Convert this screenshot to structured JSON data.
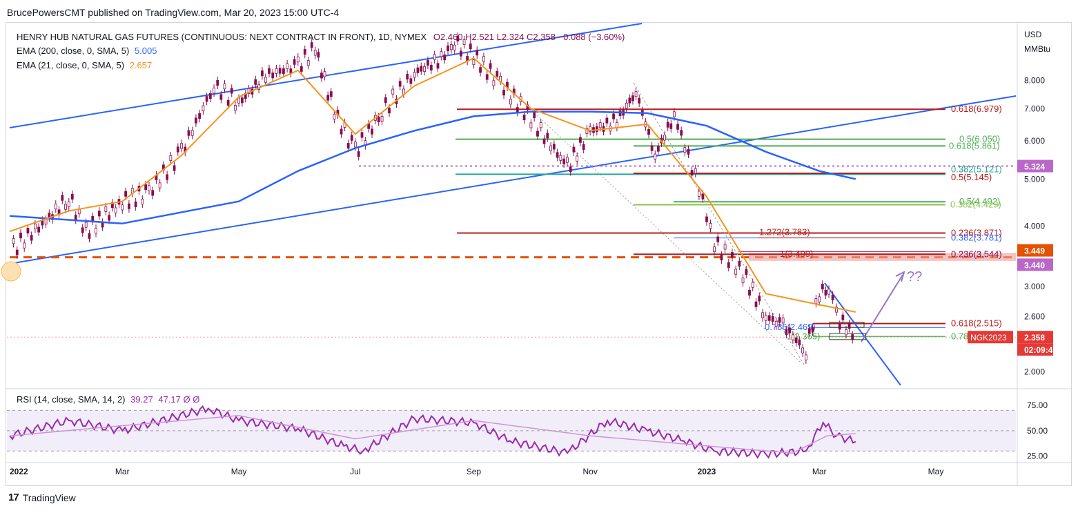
{
  "header": {
    "publisher": "BrucePowersCMT published on TradingView.com, Mar 20, 2023 15:00 UTC-4"
  },
  "legend": {
    "symbol": "HENRY HUB NATURAL GAS FUTURES (CONTINUOUS: NEXT CONTRACT IN FRONT), 1D, NYMEX",
    "ohlc": "O2.460  H2.521  L2.324  C2.358  −0.088 (−3.60%)",
    "ema200_label": "EMA (200, close, 0, SMA, 5)",
    "ema200_value": "5.005",
    "ema21_label": "EMA (21, close, 0, SMA, 5)",
    "ema21_value": "2.657",
    "rsi_label": "RSI (14, close, SMA, 14, 2)",
    "rsi_value1": "39.27",
    "rsi_value2": "47.17",
    "rsi_value3": "Ø",
    "rsi_value4": "Ø"
  },
  "footer": {
    "brand": "TradingView"
  },
  "colors": {
    "candle": "#880e4f",
    "ema200": "#2962ff",
    "ema21": "#f7931a",
    "rsi": "#9c27b0",
    "trendline": "#2962ff",
    "support": "#e65100",
    "fib_red": "#b71c1c",
    "fib_green": "#4caf50",
    "price_tag": "#e53935"
  },
  "chart_data": [
    {
      "type": "candlestick",
      "title": "HENRY HUB NATURAL GAS FUTURES (CONTINUOUS: NEXT CONTRACT IN FRONT), 1D, NYMEX",
      "y_unit": "USD MMBtu",
      "y_scale": "log",
      "ylim": [
        1.85,
        10.5
      ],
      "y_ticks": [
        "8.000",
        "7.000",
        "6.000",
        "5.000",
        "4.000",
        "3.000",
        "2.600",
        "2.000"
      ],
      "x_ticks": [
        "2022",
        "Mar",
        "May",
        "Jul",
        "Sep",
        "Nov",
        "2023",
        "Mar",
        "May"
      ],
      "x_tick_dates": [
        "2022-01-01",
        "2022-03-01",
        "2022-05-01",
        "2022-07-01",
        "2022-09-01",
        "2022-11-01",
        "2023-01-01",
        "2023-03-01",
        "2023-05-01"
      ],
      "series": [
        {
          "name": "EMA (200, close, 0, SMA, 5)",
          "points": [
            [
              "2022-01-01",
              4.2
            ],
            [
              "2022-03-01",
              4.05
            ],
            [
              "2022-05-01",
              4.5
            ],
            [
              "2022-06-01",
              5.2
            ],
            [
              "2022-07-01",
              5.8
            ],
            [
              "2022-08-01",
              6.3
            ],
            [
              "2022-09-01",
              6.75
            ],
            [
              "2022-10-01",
              6.9
            ],
            [
              "2022-11-01",
              6.9
            ],
            [
              "2022-12-01",
              6.85
            ],
            [
              "2023-01-01",
              6.45
            ],
            [
              "2023-02-01",
              5.7
            ],
            [
              "2023-03-01",
              5.2
            ],
            [
              "2023-03-20",
              5.005
            ]
          ]
        },
        {
          "name": "EMA (21, close, 0, SMA, 5)",
          "points": [
            [
              "2022-01-01",
              3.9
            ],
            [
              "2022-02-01",
              4.3
            ],
            [
              "2022-03-01",
              4.5
            ],
            [
              "2022-04-01",
              5.6
            ],
            [
              "2022-05-01",
              7.4
            ],
            [
              "2022-06-01",
              8.4
            ],
            [
              "2022-07-01",
              6.2
            ],
            [
              "2022-08-01",
              7.8
            ],
            [
              "2022-09-01",
              8.9
            ],
            [
              "2022-10-01",
              7.0
            ],
            [
              "2022-11-01",
              6.3
            ],
            [
              "2022-12-01",
              6.5
            ],
            [
              "2023-01-01",
              4.6
            ],
            [
              "2023-02-01",
              2.9
            ],
            [
              "2023-03-01",
              2.75
            ],
            [
              "2023-03-20",
              2.657
            ]
          ]
        },
        {
          "name": "Close",
          "points": [
            [
              "2022-01-03",
              3.6
            ],
            [
              "2022-01-20",
              4.1
            ],
            [
              "2022-02-01",
              4.6
            ],
            [
              "2022-02-10",
              3.9
            ],
            [
              "2022-03-01",
              4.5
            ],
            [
              "2022-03-15",
              4.7
            ],
            [
              "2022-04-01",
              5.7
            ],
            [
              "2022-04-18",
              7.8
            ],
            [
              "2022-05-01",
              7.2
            ],
            [
              "2022-05-15",
              8.2
            ],
            [
              "2022-06-01",
              8.6
            ],
            [
              "2022-06-10",
              9.3
            ],
            [
              "2022-06-20",
              6.9
            ],
            [
              "2022-07-01",
              5.7
            ],
            [
              "2022-07-15",
              6.9
            ],
            [
              "2022-08-01",
              8.3
            ],
            [
              "2022-08-15",
              8.9
            ],
            [
              "2022-08-22",
              9.6
            ],
            [
              "2022-09-01",
              9.0
            ],
            [
              "2022-09-15",
              7.9
            ],
            [
              "2022-10-01",
              6.7
            ],
            [
              "2022-10-20",
              5.3
            ],
            [
              "2022-11-01",
              6.3
            ],
            [
              "2022-11-15",
              6.6
            ],
            [
              "2022-11-25",
              7.6
            ],
            [
              "2022-12-05",
              5.6
            ],
            [
              "2022-12-15",
              6.8
            ],
            [
              "2022-12-28",
              4.8
            ],
            [
              "2023-01-05",
              3.7
            ],
            [
              "2023-01-20",
              3.2
            ],
            [
              "2023-02-01",
              2.6
            ],
            [
              "2023-02-10",
              2.5
            ],
            [
              "2023-02-22",
              2.2
            ],
            [
              "2023-03-01",
              2.9
            ],
            [
              "2023-03-06",
              3.0
            ],
            [
              "2023-03-10",
              2.6
            ],
            [
              "2023-03-20",
              2.358
            ]
          ]
        }
      ],
      "levels": [
        {
          "label": "0.618(6.979)",
          "value": 6.979
        },
        {
          "label": "0.5(6.050)",
          "value": 6.05
        },
        {
          "label": "0.618(5.861)",
          "value": 5.861
        },
        {
          "label": "0.382(5.121)",
          "value": 5.121
        },
        {
          "label": "0.5(5.145)",
          "value": 5.145
        },
        {
          "label": "0.5(4.492)",
          "value": 4.492
        },
        {
          "label": "0.382(4.429)",
          "value": 4.429
        },
        {
          "label": "0.236(3.871)",
          "value": 3.871
        },
        {
          "label": "0.382(3.781)",
          "value": 3.781
        },
        {
          "label": "1.272(3.783)",
          "value": 3.783
        },
        {
          "label": "1(3.499)",
          "value": 3.499
        },
        {
          "label": "0.236(3.544)",
          "value": 3.544
        },
        {
          "label": "0.618(2.515)",
          "value": 2.515
        },
        {
          "label": "0.786(2.469)",
          "value": 2.469
        },
        {
          "label": "1(2.365)",
          "value": 2.365
        },
        {
          "label": "0.78",
          "value": 2.365
        }
      ],
      "price_tags": [
        {
          "label": "5.324",
          "value": 5.324,
          "color": "#ba68c8"
        },
        {
          "label": "3.449",
          "value": 3.449,
          "color": "#e65100"
        },
        {
          "label": "3.440",
          "value": 3.44,
          "color": "#ba68c8"
        },
        {
          "label": "NGK2023",
          "value": 2.358,
          "color": "#e53935"
        },
        {
          "label": "2.358",
          "value": 2.358,
          "color": "#e53935"
        },
        {
          "label": "02:09:41",
          "value": 2.358,
          "color": "#e53935"
        }
      ],
      "annotations": [
        "??"
      ]
    },
    {
      "type": "line",
      "title": "RSI (14, close, SMA, 14, 2)",
      "ylim": [
        20,
        90
      ],
      "y_ticks": [
        "75.00",
        "50.00",
        "25.00"
      ],
      "bands": [
        70,
        50,
        30
      ],
      "series": [
        {
          "name": "RSI",
          "points": [
            [
              "2022-01-01",
              45
            ],
            [
              "2022-02-01",
              60
            ],
            [
              "2022-03-01",
              50
            ],
            [
              "2022-04-15",
              72
            ],
            [
              "2022-05-01",
              60
            ],
            [
              "2022-06-01",
              52
            ],
            [
              "2022-06-25",
              35
            ],
            [
              "2022-07-05",
              30
            ],
            [
              "2022-08-01",
              62
            ],
            [
              "2022-09-01",
              58
            ],
            [
              "2022-09-20",
              40
            ],
            [
              "2022-10-20",
              28
            ],
            [
              "2022-11-10",
              60
            ],
            [
              "2022-12-01",
              50
            ],
            [
              "2022-12-20",
              40
            ],
            [
              "2023-01-05",
              30
            ],
            [
              "2023-02-01",
              27
            ],
            [
              "2023-02-22",
              30
            ],
            [
              "2023-03-03",
              58
            ],
            [
              "2023-03-10",
              45
            ],
            [
              "2023-03-20",
              39.27
            ]
          ]
        },
        {
          "name": "RSI SMA",
          "points": [
            [
              "2022-01-01",
              45
            ],
            [
              "2022-03-01",
              55
            ],
            [
              "2022-05-01",
              65
            ],
            [
              "2022-07-01",
              42
            ],
            [
              "2022-09-01",
              60
            ],
            [
              "2022-11-01",
              45
            ],
            [
              "2023-01-01",
              35
            ],
            [
              "2023-02-15",
              28
            ],
            [
              "2023-03-05",
              45
            ],
            [
              "2023-03-20",
              47.17
            ]
          ]
        }
      ]
    }
  ]
}
